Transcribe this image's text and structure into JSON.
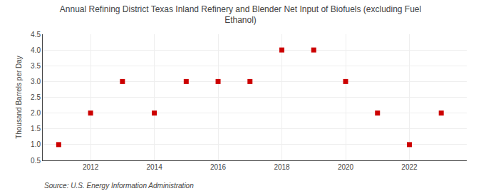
{
  "chart_data": {
    "type": "scatter",
    "title": "Annual Refining District Texas Inland Refinery and Blender Net Input of Biofuels (excluding Fuel\nEthanol)",
    "ylabel": "Thousand Barrels per Day",
    "annotations": [
      "Source: U.S. Energy Information Administration"
    ],
    "x": [
      2011,
      2012,
      2013,
      2014,
      2015,
      2016,
      2017,
      2018,
      2019,
      2020,
      2021,
      2022,
      2023
    ],
    "values": [
      1.0,
      2.0,
      3.0,
      2.0,
      3.0,
      3.0,
      3.0,
      4.0,
      4.0,
      3.0,
      2.0,
      1.0,
      2.0
    ],
    "color": "#cc0000",
    "marker": "square",
    "xlim": [
      2010.5,
      2023.8
    ],
    "xticks": [
      2012,
      2014,
      2016,
      2018,
      2020,
      2022
    ],
    "ylim": [
      0.5,
      4.5
    ],
    "yticks": [
      0.5,
      {
        "value": 1.0,
        "label": "1.0"
      },
      1.5,
      {
        "value": 2.0,
        "label": "2.0"
      },
      2.5,
      {
        "value": 3.0,
        "label": "3.0"
      },
      3.5,
      {
        "value": 4.0,
        "label": "4.0"
      },
      4.5
    ],
    "grid": true
  }
}
